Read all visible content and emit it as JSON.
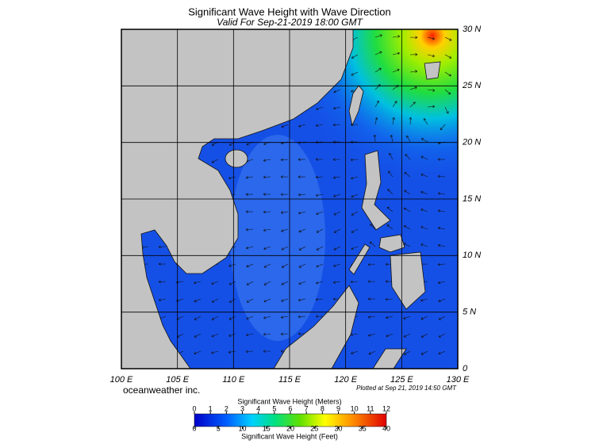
{
  "header": {
    "title": "Significant Wave Height with Wave Direction",
    "subtitle": "Valid For Sep-21-2019 18:00 GMT"
  },
  "map": {
    "lat_labels": [
      "0",
      "5 N",
      "10 N",
      "15 N",
      "20 N",
      "25 N",
      "30 N"
    ],
    "lon_labels": [
      "100 E",
      "105 E",
      "110 E",
      "115 E",
      "120 E",
      "125 E",
      "130 E"
    ]
  },
  "footer": {
    "credit": "oceanweather inc.",
    "plotted": "Plotted at Sep 21, 2019 14:50 GMT"
  },
  "legend": {
    "meters_title": "Significant Wave Height (Meters)",
    "meters_ticks": [
      "0",
      "1",
      "2",
      "3",
      "4",
      "5",
      "6",
      "7",
      "8",
      "9",
      "10",
      "11",
      "12"
    ],
    "feet_ticks": [
      "0",
      "5",
      "10",
      "15",
      "20",
      "25",
      "30",
      "35",
      "40"
    ],
    "feet_title": "Significant Wave Height (Feet)"
  }
}
